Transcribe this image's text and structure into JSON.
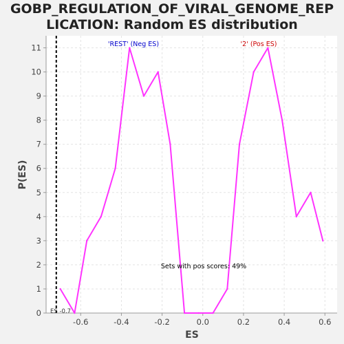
{
  "chart_data": {
    "type": "line",
    "title": "GOBP_REGULATION_OF_VIRAL_GENOME_REP\nLICATION: Random ES distribution",
    "xlabel": "ES",
    "ylabel": "P(ES)",
    "xlim": [
      -0.77,
      0.66
    ],
    "ylim": [
      0,
      11.5
    ],
    "x_ticks": [
      -0.6,
      -0.4,
      -0.2,
      0.0,
      0.2,
      0.4,
      0.6
    ],
    "x_tick_labels": [
      "-0.6",
      "-0.4",
      "-0.2",
      "0.0",
      "0.2",
      "0.4",
      "0.6"
    ],
    "y_ticks": [
      0,
      1,
      2,
      3,
      4,
      5,
      6,
      7,
      8,
      9,
      10,
      11
    ],
    "y_tick_labels": [
      "0",
      "1",
      "2",
      "3",
      "4",
      "5",
      "6",
      "7",
      "8",
      "9",
      "10",
      "11"
    ],
    "grid": true,
    "series": [
      {
        "color": "#ff33ff",
        "x": [
          -0.7,
          -0.63,
          -0.57,
          -0.5,
          -0.43,
          -0.36,
          -0.29,
          -0.22,
          -0.16,
          -0.09,
          -0.02,
          0.05,
          0.12,
          0.18,
          0.25,
          0.32,
          0.39,
          0.46,
          0.53,
          0.59
        ],
        "y": [
          1,
          0,
          3,
          4,
          6,
          11,
          9,
          10,
          7,
          0,
          0,
          0,
          1,
          7,
          10,
          11,
          8,
          4,
          5,
          3
        ]
      }
    ],
    "marker": {
      "x": -0.72,
      "label": "ES -0.7",
      "color": "#000000"
    },
    "annotations": [
      {
        "text": "'REST' (Neg ES)",
        "color": "#0000cc"
      },
      {
        "text": "'2' (Pos ES)",
        "color": "#cc0000"
      },
      {
        "text": "Sets with pos scores: 49%",
        "color": "#000000"
      }
    ]
  }
}
